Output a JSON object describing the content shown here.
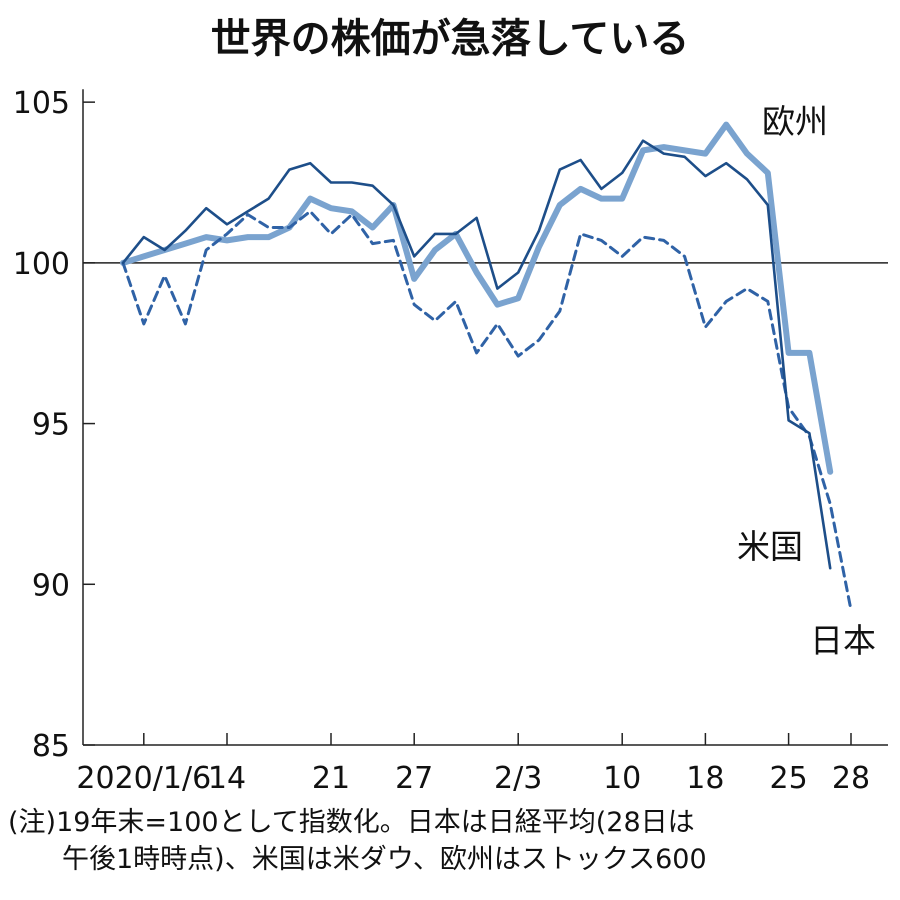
{
  "chart_data": {
    "type": "line",
    "title": "世界の株価が急落している",
    "ylim": [
      85,
      106
    ],
    "y_ticks": [
      105,
      100,
      95,
      90,
      85
    ],
    "x_tick_labels": [
      {
        "label": "2020/1/6",
        "at": 1
      },
      {
        "label": "14",
        "at": 5
      },
      {
        "label": "21",
        "at": 10
      },
      {
        "label": "27",
        "at": 14
      },
      {
        "label": "2/3",
        "at": 19
      },
      {
        "label": "10",
        "at": 24
      },
      {
        "label": "18",
        "at": 28
      },
      {
        "label": "25",
        "at": 32
      },
      {
        "label": "28",
        "at": 35
      }
    ],
    "reference_line": 100,
    "series": [
      {
        "name": "米国",
        "style": "solid-thin",
        "color": "#1d4e89",
        "values": [
          100,
          100.8,
          100.4,
          101.0,
          101.7,
          101.2,
          101.6,
          102.0,
          102.9,
          103.1,
          102.5,
          102.5,
          102.4,
          101.8,
          100.2,
          100.9,
          100.9,
          101.4,
          99.2,
          99.7,
          101.0,
          102.9,
          103.2,
          102.3,
          102.8,
          103.8,
          103.4,
          103.3,
          102.7,
          103.1,
          102.6,
          101.8,
          95.1,
          94.7,
          90.5
        ]
      },
      {
        "name": "日本",
        "style": "dashed",
        "color": "#2f62a6",
        "values": [
          100,
          98.1,
          99.6,
          98.1,
          100.4,
          100.9,
          101.5,
          101.1,
          101.1,
          101.6,
          100.9,
          101.5,
          100.6,
          100.7,
          98.7,
          98.2,
          98.8,
          97.2,
          98.1,
          97.1,
          97.6,
          98.5,
          100.9,
          100.7,
          100.2,
          100.8,
          100.7,
          100.2,
          98.0,
          98.8,
          99.2,
          98.8,
          95.5,
          94.6,
          92.5,
          89.2
        ]
      },
      {
        "name": "欧州",
        "style": "thick-light",
        "color": "#7aa3cf",
        "values": [
          100,
          100.2,
          100.4,
          100.6,
          100.8,
          100.7,
          100.8,
          100.8,
          101.1,
          102.0,
          101.7,
          101.6,
          101.1,
          101.8,
          99.5,
          100.4,
          100.9,
          99.7,
          98.7,
          98.9,
          100.5,
          101.8,
          102.3,
          102.0,
          102.0,
          103.5,
          103.6,
          103.5,
          103.4,
          104.3,
          103.4,
          102.8,
          97.2,
          97.2,
          93.5
        ]
      }
    ],
    "note": [
      "(注)19年末=100として指数化。日本は日経平均(28日は",
      "午後1時時点)、米国は米ダウ、欧州はストックス600"
    ],
    "grid": false
  }
}
